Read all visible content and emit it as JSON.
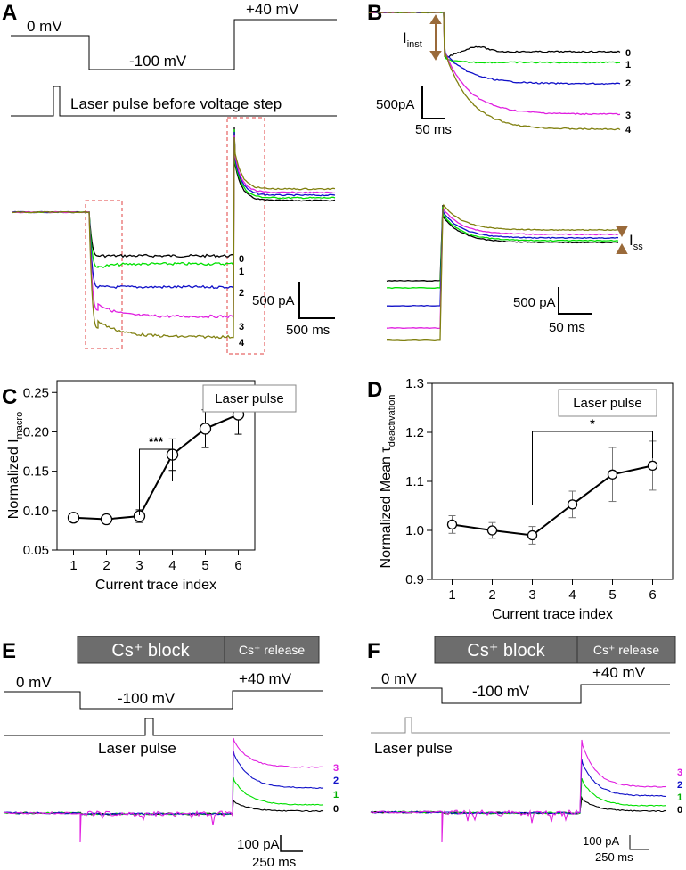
{
  "panels": {
    "A": {
      "label": "A",
      "voltage": {
        "v0": "0 mV",
        "vneg": "-100 mV",
        "vpos": "+40 mV"
      },
      "laser_label": "Laser pulse before voltage step",
      "trace_labels": [
        "0",
        "1",
        "2",
        "3",
        "4"
      ],
      "scalebar": {
        "y": "500 pA",
        "x": "500 ms"
      }
    },
    "B": {
      "label": "B",
      "inst_label": "I",
      "inst_sub": "inst",
      "ss_label": "I",
      "ss_sub": "ss",
      "trace_labels": [
        "0",
        "1",
        "2",
        "3",
        "4"
      ],
      "scalebar_top": {
        "y": "500pA",
        "x": "50 ms"
      },
      "scalebar_bottom": {
        "y": "500 pA",
        "x": "50 ms"
      }
    },
    "E": {
      "label": "E",
      "block_label": "Cs⁺ block",
      "release_label": "Cs⁺ release",
      "voltage": {
        "v0": "0 mV",
        "vneg": "-100 mV",
        "vpos": "+40 mV"
      },
      "laser_label": "Laser pulse",
      "trace_labels": [
        "3",
        "2",
        "1",
        "0"
      ],
      "scalebar": {
        "y": "100 pA",
        "x": "250 ms"
      }
    },
    "F": {
      "label": "F",
      "block_label": "Cs⁺ block",
      "release_label": "Cs⁺ release",
      "voltage": {
        "v0": "0 mV",
        "vneg": "-100 mV",
        "vpos": "+40 mV"
      },
      "laser_label": "Laser pulse",
      "trace_labels": [
        "3",
        "2",
        "1",
        "0"
      ],
      "scalebar": {
        "y": "100 pA",
        "x": "250 ms"
      }
    }
  },
  "colors": {
    "trace0": "#000000",
    "trace1": "#00e000",
    "trace2": "#1010c8",
    "trace3": "#e020e0",
    "trace4": "#808010",
    "dashbox": "#e04040",
    "arrow": "#9a6a3a",
    "blockbox": "#6d6d6d"
  },
  "chart_data": [
    {
      "panel": "C",
      "type": "line",
      "label": "C",
      "ylabel_main": "Normalized I",
      "ylabel_sub": "macro",
      "xlabel": "Current trace index",
      "legend": "Laser pulse",
      "significance": "***",
      "significance_between": [
        3,
        4
      ],
      "x": [
        1,
        2,
        3,
        4,
        5,
        6
      ],
      "y": [
        0.091,
        0.089,
        0.093,
        0.171,
        0.204,
        0.222
      ],
      "err": [
        0.004,
        0.003,
        0.008,
        0.02,
        0.024,
        0.025
      ],
      "xticks": [
        1,
        2,
        3,
        4,
        5,
        6
      ],
      "yticks": [
        "0.05",
        "0.10",
        "0.15",
        "0.20",
        "0.25"
      ],
      "xlim": [
        0.5,
        6.5
      ],
      "ylim": [
        0.05,
        0.265
      ]
    },
    {
      "panel": "D",
      "type": "line",
      "label": "D",
      "ylabel_main": "Normalized Mean τ",
      "ylabel_sub": "deactivation",
      "xlabel": "Current trace index",
      "legend": "Laser pulse",
      "significance": "*",
      "significance_between": [
        3,
        6
      ],
      "x": [
        1,
        2,
        3,
        4,
        5,
        6
      ],
      "y": [
        1.012,
        1.0,
        0.99,
        1.053,
        1.114,
        1.132
      ],
      "err": [
        0.018,
        0.016,
        0.018,
        0.027,
        0.055,
        0.05
      ],
      "xticks": [
        1,
        2,
        3,
        4,
        5,
        6
      ],
      "yticks": [
        "0.9",
        "1.0",
        "1.1",
        "1.2",
        "1.3"
      ],
      "xlim": [
        0.5,
        6.5
      ],
      "ylim": [
        0.9,
        1.3
      ]
    }
  ]
}
